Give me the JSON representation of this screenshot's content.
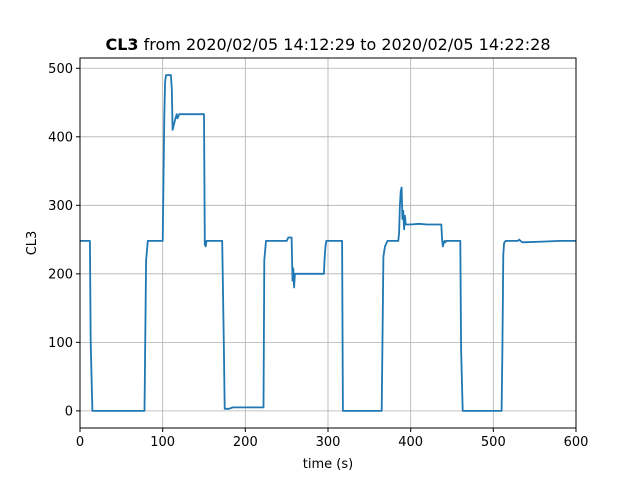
{
  "chart_data": {
    "type": "line",
    "title": {
      "bold": "CL3",
      "rest": " from 2020/02/05 14:12:29 to 2020/02/05 14:22:28"
    },
    "xlabel": "time (s)",
    "ylabel": "CL3",
    "xlim": [
      0,
      600
    ],
    "ylim": [
      -25,
      515
    ],
    "xticks": [
      0,
      100,
      200,
      300,
      400,
      500,
      600
    ],
    "yticks": [
      0,
      100,
      200,
      300,
      400,
      500
    ],
    "grid": true,
    "series": [
      {
        "color": "#1f77b4",
        "x": [
          0,
          12,
          13,
          15,
          78,
          80,
          82,
          100,
          102,
          103,
          104,
          106,
          109,
          110,
          111,
          112,
          113,
          115,
          117,
          118,
          120,
          150,
          151,
          152,
          153,
          155,
          172,
          174,
          175,
          180,
          185,
          222,
          223,
          225,
          228,
          250,
          252,
          255,
          256,
          257,
          258,
          259,
          260,
          262,
          265,
          295,
          296,
          297,
          298,
          300,
          317,
          318,
          320,
          365,
          367,
          369,
          372,
          385,
          386,
          387,
          388,
          389,
          390,
          391,
          392,
          393,
          394,
          395,
          400,
          410,
          420,
          437,
          438,
          439,
          440,
          441,
          442,
          443,
          445,
          460,
          461,
          463,
          510,
          511,
          512,
          513,
          515,
          530,
          531,
          535,
          560,
          580,
          600
        ],
        "y": [
          248,
          248,
          100,
          0,
          0,
          220,
          248,
          248,
          430,
          480,
          490,
          490,
          490,
          490,
          470,
          410,
          415,
          425,
          433,
          427,
          433,
          433,
          243,
          240,
          248,
          248,
          248,
          100,
          3,
          3,
          5,
          5,
          220,
          248,
          248,
          248,
          253,
          253,
          253,
          190,
          208,
          180,
          200,
          200,
          200,
          200,
          225,
          240,
          248,
          248,
          248,
          0,
          0,
          0,
          225,
          240,
          248,
          248,
          260,
          300,
          320,
          326,
          280,
          292,
          265,
          285,
          272,
          272,
          272,
          273,
          272,
          272,
          250,
          240,
          245,
          248,
          246,
          248,
          248,
          248,
          90,
          0,
          0,
          90,
          228,
          245,
          248,
          248,
          250,
          246,
          247,
          248,
          248
        ]
      }
    ]
  }
}
